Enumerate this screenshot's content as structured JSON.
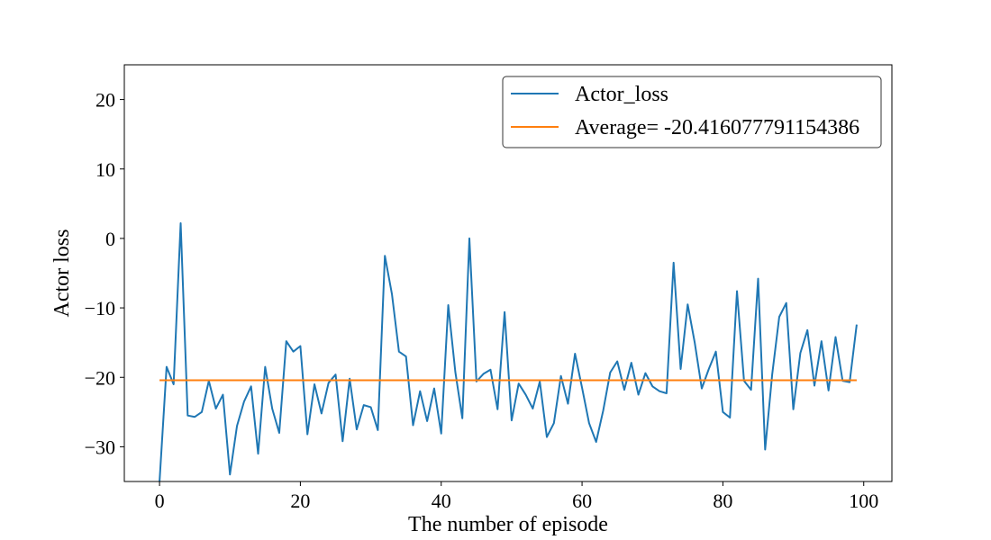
{
  "chart_data": {
    "type": "line",
    "title": "",
    "xlabel": "The number of episode",
    "ylabel": "Actor loss",
    "xlim": [
      -5.0,
      104.0
    ],
    "ylim": [
      -35.0,
      25.0
    ],
    "xticks": [
      0,
      20,
      40,
      60,
      80,
      100
    ],
    "xtick_labels": [
      "0",
      "20",
      "40",
      "60",
      "80",
      "100"
    ],
    "yticks": [
      -30,
      -20,
      -10,
      0,
      10,
      20
    ],
    "ytick_labels": [
      "−30",
      "−20",
      "−10",
      "0",
      "10",
      "20"
    ],
    "grid": false,
    "legend_position": "top-right",
    "series": [
      {
        "name": "Actor_loss",
        "color": "#1f77b4",
        "x": [
          0,
          1,
          2,
          3,
          4,
          5,
          6,
          7,
          8,
          9,
          10,
          11,
          12,
          13,
          14,
          15,
          16,
          17,
          18,
          19,
          20,
          21,
          22,
          23,
          24,
          25,
          26,
          27,
          28,
          29,
          30,
          31,
          32,
          33,
          34,
          35,
          36,
          37,
          38,
          39,
          40,
          41,
          42,
          43,
          44,
          45,
          46,
          47,
          48,
          49,
          50,
          51,
          52,
          53,
          54,
          55,
          56,
          57,
          58,
          59,
          60,
          61,
          62,
          63,
          64,
          65,
          66,
          67,
          68,
          69,
          70,
          71,
          72,
          73,
          74,
          75,
          76,
          77,
          78,
          79,
          80,
          81,
          82,
          83,
          84,
          85,
          86,
          87,
          88,
          89,
          90,
          91,
          92,
          93,
          94,
          95,
          96,
          97,
          98,
          99
        ],
        "values": [
          -35.0,
          -18.5,
          -21.0,
          2.2,
          -25.5,
          -25.7,
          -25.0,
          -20.5,
          -24.5,
          -22.5,
          -34.0,
          -27.0,
          -23.5,
          -21.3,
          -31.0,
          -18.5,
          -24.5,
          -28.0,
          -14.8,
          -16.3,
          -15.5,
          -28.2,
          -21.0,
          -25.2,
          -20.8,
          -19.6,
          -29.2,
          -20.2,
          -27.5,
          -24.0,
          -24.3,
          -27.6,
          -2.5,
          -8.0,
          -16.3,
          -17.0,
          -26.9,
          -22.0,
          -26.3,
          -21.6,
          -28.1,
          -9.6,
          -19.2,
          -25.9,
          0.0,
          -20.6,
          -19.5,
          -18.9,
          -24.6,
          -10.6,
          -26.2,
          -20.9,
          -22.5,
          -24.5,
          -20.6,
          -28.6,
          -26.6,
          -19.8,
          -23.8,
          -16.6,
          -21.5,
          -26.6,
          -29.3,
          -24.8,
          -19.3,
          -17.7,
          -21.8,
          -17.9,
          -22.5,
          -19.4,
          -21.3,
          -22.0,
          -22.3,
          -3.5,
          -18.8,
          -9.5,
          -15.0,
          -21.6,
          -18.8,
          -16.3,
          -25.0,
          -25.8,
          -7.6,
          -20.5,
          -21.8,
          -5.8,
          -30.4,
          -19.6,
          -11.3,
          -9.3,
          -24.6,
          -16.5,
          -13.2,
          -21.2,
          -14.8,
          -21.9,
          -14.2,
          -20.5,
          -20.7,
          -12.4
        ]
      },
      {
        "name": "Average= -20.416077791154386",
        "color": "#ff7f0e",
        "x": [
          0,
          99
        ],
        "values": [
          -20.416077791154386,
          -20.416077791154386
        ]
      }
    ]
  }
}
